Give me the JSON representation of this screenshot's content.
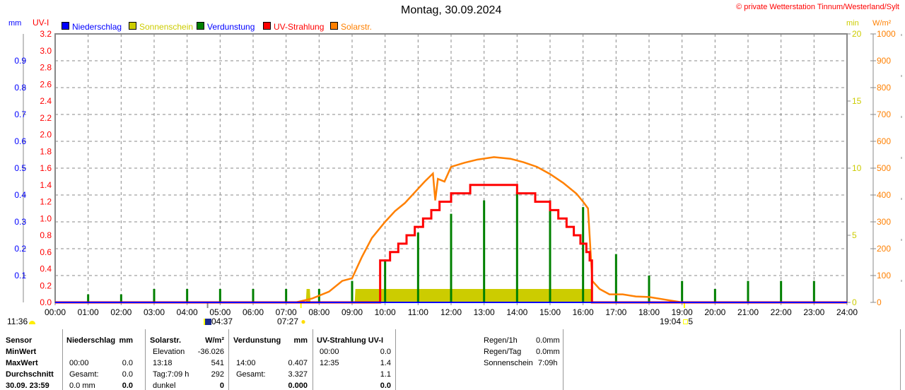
{
  "header": {
    "title": "Montag, 30.09.2024",
    "copyright": "© private Wetterstation Tinnum/Westerland/Sylt"
  },
  "legend": [
    {
      "label": "Niederschlag",
      "color": "#0000ff",
      "text_color": "#0000ff"
    },
    {
      "label": "Sonnenschein",
      "color": "#cccc00",
      "text_color": "#cccc00"
    },
    {
      "label": "Verdunstung",
      "color": "#008000",
      "text_color": "#0000ff"
    },
    {
      "label": "UV-Strahlung",
      "color": "#ff0000",
      "text_color": "#ff0000"
    },
    {
      "label": "Solarstr.",
      "color": "#ff8000",
      "text_color": "#ff8000"
    }
  ],
  "chart_data": {
    "type": "line",
    "title": "Montag, 30.09.2024",
    "x_range_hours": [
      0,
      24
    ],
    "x_ticks": [
      "00:00",
      "01:00",
      "02:00",
      "03:00",
      "04:00",
      "05:00",
      "06:00",
      "07:00",
      "08:00",
      "09:00",
      "10:00",
      "11:00",
      "12:00",
      "13:00",
      "14:00",
      "15:00",
      "16:00",
      "17:00",
      "18:00",
      "19:00",
      "20:00",
      "21:00",
      "22:00",
      "23:00",
      "24:00"
    ],
    "axes": {
      "mm": {
        "label": "mm",
        "range": [
          0,
          1.0
        ],
        "ticks": [
          "0.1",
          "0.2",
          "0.3",
          "0.4",
          "0.5",
          "0.6",
          "0.7",
          "0.8",
          "0.9"
        ]
      },
      "uv": {
        "label": "UV-I",
        "range": [
          0,
          3.2
        ],
        "ticks": [
          "0.0",
          "0.2",
          "0.4",
          "0.6",
          "0.8",
          "1.0",
          "1.2",
          "1.4",
          "1.6",
          "1.8",
          "2.0",
          "2.2",
          "2.4",
          "2.6",
          "2.8",
          "3.0",
          "3.2"
        ]
      },
      "min": {
        "label": "min",
        "range": [
          0,
          20
        ],
        "ticks": [
          "0",
          "5",
          "10",
          "15",
          "20"
        ]
      },
      "wm2": {
        "label": "W/m²",
        "range": [
          0,
          1000
        ],
        "ticks": [
          "0",
          "100",
          "200",
          "300",
          "400",
          "500",
          "600",
          "700",
          "800",
          "900",
          "1000"
        ]
      }
    },
    "grid": true,
    "series": [
      {
        "name": "Niederschlag",
        "axis": "mm",
        "type": "line",
        "points": [
          [
            0,
            0
          ],
          [
            24,
            0
          ]
        ]
      },
      {
        "name": "Verdunstung",
        "axis": "mm",
        "type": "bar",
        "points": [
          [
            1,
            0.03
          ],
          [
            2,
            0.03
          ],
          [
            3,
            0.05
          ],
          [
            4,
            0.05
          ],
          [
            5,
            0.05
          ],
          [
            6,
            0.05
          ],
          [
            7,
            0.05
          ],
          [
            8,
            0.05
          ],
          [
            9,
            0.08
          ],
          [
            10,
            0.16
          ],
          [
            11,
            0.26
          ],
          [
            12,
            0.33
          ],
          [
            13,
            0.38
          ],
          [
            14,
            0.41
          ],
          [
            15,
            0.38
          ],
          [
            16,
            0.355
          ],
          [
            17,
            0.18
          ],
          [
            18,
            0.1
          ],
          [
            19,
            0.08
          ],
          [
            20,
            0.05
          ],
          [
            21,
            0.08
          ],
          [
            22,
            0.08
          ],
          [
            23,
            0.08
          ]
        ]
      },
      {
        "name": "Sonnenschein",
        "axis": "min",
        "type": "area",
        "points": [
          [
            7.6,
            0
          ],
          [
            7.62,
            1
          ],
          [
            7.72,
            1
          ],
          [
            7.74,
            0
          ],
          [
            9.08,
            0
          ],
          [
            9.1,
            1
          ],
          [
            16.25,
            1
          ],
          [
            16.27,
            0
          ]
        ]
      },
      {
        "name": "UV-Strahlung",
        "axis": "uv",
        "type": "step",
        "points": [
          [
            0,
            0
          ],
          [
            9.83,
            0
          ],
          [
            9.85,
            0.5
          ],
          [
            10.15,
            0.6
          ],
          [
            10.4,
            0.7
          ],
          [
            10.65,
            0.8
          ],
          [
            10.9,
            0.9
          ],
          [
            11.15,
            1.0
          ],
          [
            11.4,
            1.1
          ],
          [
            11.65,
            1.2
          ],
          [
            12.0,
            1.3
          ],
          [
            12.58,
            1.4
          ],
          [
            14.0,
            1.3
          ],
          [
            14.55,
            1.2
          ],
          [
            15.0,
            1.1
          ],
          [
            15.25,
            1.0
          ],
          [
            15.5,
            0.9
          ],
          [
            15.72,
            0.8
          ],
          [
            15.92,
            0.7
          ],
          [
            16.1,
            0.6
          ],
          [
            16.2,
            0.5
          ],
          [
            16.27,
            0
          ],
          [
            24,
            0
          ]
        ]
      },
      {
        "name": "Solarstr.",
        "axis": "wm2",
        "type": "line",
        "points": [
          [
            7.3,
            0
          ],
          [
            7.8,
            15
          ],
          [
            8.3,
            40
          ],
          [
            8.7,
            80
          ],
          [
            9.0,
            90
          ],
          [
            9.3,
            170
          ],
          [
            9.6,
            240
          ],
          [
            10.0,
            300
          ],
          [
            10.3,
            340
          ],
          [
            10.6,
            370
          ],
          [
            10.9,
            410
          ],
          [
            11.2,
            450
          ],
          [
            11.45,
            480
          ],
          [
            11.52,
            380
          ],
          [
            11.6,
            460
          ],
          [
            11.8,
            450
          ],
          [
            12.0,
            505
          ],
          [
            12.4,
            520
          ],
          [
            12.8,
            532
          ],
          [
            13.3,
            541
          ],
          [
            13.8,
            535
          ],
          [
            14.2,
            522
          ],
          [
            14.6,
            505
          ],
          [
            15.0,
            478
          ],
          [
            15.4,
            445
          ],
          [
            15.8,
            405
          ],
          [
            16.0,
            375
          ],
          [
            16.15,
            350
          ],
          [
            16.28,
            80
          ],
          [
            16.5,
            50
          ],
          [
            16.8,
            30
          ],
          [
            17.2,
            30
          ],
          [
            17.6,
            22
          ],
          [
            18.0,
            20
          ],
          [
            18.5,
            10
          ],
          [
            19.0,
            0
          ]
        ]
      }
    ]
  },
  "markers": {
    "moon_time": "11:36",
    "twilight_start": "04:37",
    "sunrise": "07:27",
    "sunset": "19:04",
    "sunset_extra": "5"
  },
  "table": {
    "sensor": {
      "header": "Sensor",
      "rows": [
        "MinWert",
        "MaxWert",
        "Durchschnitt",
        "30.09. 23:59"
      ]
    },
    "niederschlag": {
      "header": "Niederschlag",
      "unit": "mm",
      "rows": [
        [
          "",
          ""
        ],
        [
          "00:00",
          "0.0"
        ],
        [
          "Gesamt:",
          "0.0"
        ],
        [
          "0.0 mm",
          "0.0"
        ]
      ]
    },
    "solar": {
      "header": "Solarstr.",
      "unit": "W/m²",
      "rows": [
        [
          "Elevation",
          "-36.026"
        ],
        [
          "13:18",
          "541"
        ],
        [
          "Tag:7:09 h",
          "292"
        ],
        [
          "dunkel",
          "0"
        ]
      ]
    },
    "verdunstung": {
      "header": "Verdunstung",
      "unit": "mm",
      "rows": [
        [
          "",
          ""
        ],
        [
          "14:00",
          "0.407"
        ],
        [
          "Gesamt:",
          "3.327"
        ],
        [
          "",
          "0.000"
        ]
      ]
    },
    "uv": {
      "header": "UV-Strahlung UV-I",
      "rows": [
        [
          "00:00",
          "0.0"
        ],
        [
          "12:35",
          "1.4"
        ],
        [
          "",
          "1.1"
        ],
        [
          "",
          "0.0"
        ]
      ]
    },
    "summary": [
      {
        "label": "Regen/1h",
        "value": "0.0mm"
      },
      {
        "label": "Regen/Tag",
        "value": "0.0mm"
      },
      {
        "label": "Sonnenschein",
        "value": "7:09h"
      }
    ]
  }
}
